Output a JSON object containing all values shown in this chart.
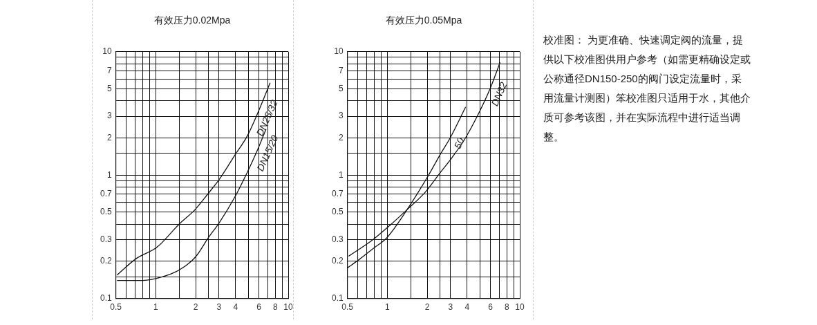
{
  "chart_data": [
    {
      "type": "line",
      "title": "有效压力0.02Mpa",
      "log": "xy",
      "grid": true,
      "xlim": [
        0.5,
        10
      ],
      "ylim": [
        0.1,
        10
      ],
      "xticks": [
        0.5,
        {
          "value": 0.6,
          "label": null
        },
        {
          "value": 0.7,
          "label": null
        },
        {
          "value": 0.8,
          "label": null
        },
        {
          "value": 0.9,
          "label": null
        },
        1,
        {
          "value": 1.5,
          "label": null
        },
        2,
        {
          "value": 2.5,
          "label": null
        },
        3,
        4,
        {
          "value": 5,
          "label": null
        },
        6,
        {
          "value": 7,
          "label": null
        },
        8,
        {
          "value": 9,
          "label": null
        },
        10
      ],
      "yticks": [
        0.1,
        {
          "value": 0.15,
          "label": null
        },
        0.2,
        0.3,
        {
          "value": 0.4,
          "label": null
        },
        0.5,
        {
          "value": 0.6,
          "label": null
        },
        0.7,
        {
          "value": 0.8,
          "label": null
        },
        {
          "value": 0.9,
          "label": null
        },
        1,
        {
          "value": 1.5,
          "label": null
        },
        2,
        3,
        {
          "value": 4,
          "label": null
        },
        5,
        {
          "value": 6,
          "label": null
        },
        7,
        {
          "value": 8,
          "label": null
        },
        {
          "value": 9,
          "label": null
        },
        10
      ],
      "series": [
        {
          "name": "DN25/32",
          "color": "#111111",
          "x": [
            0.51,
            0.71,
            1.02,
            1.5,
            1.98,
            2.49,
            3.01,
            3.97,
            4.9,
            5.9,
            7.3
          ],
          "values": [
            0.155,
            0.21,
            0.26,
            0.4,
            0.525,
            0.71,
            0.92,
            1.46,
            2.07,
            3.2,
            5.6
          ]
        },
        {
          "name": "DN15/20",
          "color": "#111111",
          "x": [
            0.51,
            0.8,
            1.13,
            1.5,
            1.85,
            2.05,
            2.49,
            3.01,
            3.97,
            4.9,
            5.95,
            6.8
          ],
          "values": [
            0.14,
            0.14,
            0.15,
            0.17,
            0.2,
            0.225,
            0.31,
            0.41,
            0.67,
            1.05,
            1.66,
            2.36
          ]
        }
      ]
    },
    {
      "type": "line",
      "title": "有效压力0.05Mpa",
      "log": "xy",
      "grid": true,
      "xlim": [
        0.5,
        10
      ],
      "ylim": [
        0.1,
        10
      ],
      "xticks": [
        0.5,
        {
          "value": 0.6,
          "label": null
        },
        {
          "value": 0.7,
          "label": null
        },
        {
          "value": 0.8,
          "label": null
        },
        {
          "value": 0.9,
          "label": null
        },
        1,
        {
          "value": 1.5,
          "label": null
        },
        2,
        {
          "value": 2.5,
          "label": null
        },
        3,
        4,
        {
          "value": 5,
          "label": null
        },
        6,
        {
          "value": 7,
          "label": null
        },
        8,
        {
          "value": 9,
          "label": null
        },
        10
      ],
      "yticks": [
        0.1,
        {
          "value": 0.15,
          "label": null
        },
        0.2,
        0.3,
        {
          "value": 0.4,
          "label": null
        },
        0.5,
        {
          "value": 0.6,
          "label": null
        },
        0.7,
        {
          "value": 0.8,
          "label": null
        },
        {
          "value": 0.9,
          "label": null
        },
        1,
        {
          "value": 1.5,
          "label": null
        },
        2,
        3,
        {
          "value": 4,
          "label": null
        },
        5,
        {
          "value": 6,
          "label": null
        },
        7,
        {
          "value": 8,
          "label": null
        },
        {
          "value": 9,
          "label": null
        },
        10
      ],
      "series": [
        {
          "name": "DN32",
          "color": "#111111",
          "x": [
            0.51,
            0.78,
            1.07,
            1.41,
            1.94,
            2.48,
            3.1,
            3.89,
            4.92,
            5.96,
            7.1
          ],
          "values": [
            0.22,
            0.3,
            0.4,
            0.525,
            0.73,
            1.03,
            1.4,
            2,
            3.2,
            5,
            8.2
          ]
        },
        {
          "name": "50",
          "color": "#111111",
          "x": [
            0.5,
            0.61,
            0.79,
            0.99,
            1.41,
            2.05,
            2.5,
            2.98,
            3.9
          ],
          "values": [
            0.177,
            0.206,
            0.256,
            0.31,
            0.525,
            1,
            1.46,
            2,
            3.56
          ]
        }
      ]
    },
    {
      "type": "other",
      "annotations": [
        "校准图： 为更准确、快速调定阀的流量，提供以下校准图供用户参考（如需更精确设定或公称通径DN150-250的阀门设定流量时，采用流量计测图）笨校准图只适用于水，其他介质可参考该图，并在实际流程中进行适当调整。"
      ]
    }
  ]
}
